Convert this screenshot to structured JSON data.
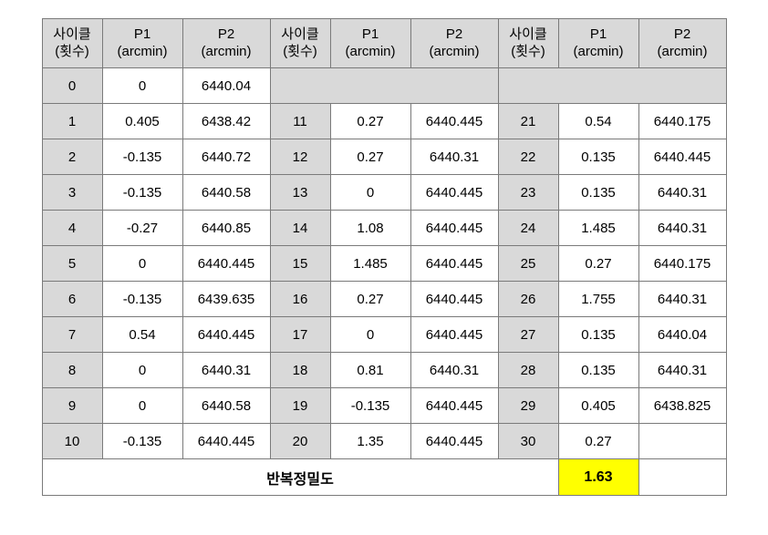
{
  "headers": {
    "cycle_line1": "사이클",
    "cycle_line2": "(횟수)",
    "p1_line1": "P1",
    "p1_line2": "(arcmin)",
    "p2_line1": "P2",
    "p2_line2": "(arcmin)"
  },
  "rows": [
    {
      "c1": "0",
      "p1a": "0",
      "p2a": "6440.04",
      "c2": "",
      "p1b": "",
      "p2b": "",
      "c3": "",
      "p1c": "",
      "p2c": ""
    },
    {
      "c1": "1",
      "p1a": "0.405",
      "p2a": "6438.42",
      "c2": "11",
      "p1b": "0.27",
      "p2b": "6440.445",
      "c3": "21",
      "p1c": "0.54",
      "p2c": "6440.175"
    },
    {
      "c1": "2",
      "p1a": "-0.135",
      "p2a": "6440.72",
      "c2": "12",
      "p1b": "0.27",
      "p2b": "6440.31",
      "c3": "22",
      "p1c": "0.135",
      "p2c": "6440.445"
    },
    {
      "c1": "3",
      "p1a": "-0.135",
      "p2a": "6440.58",
      "c2": "13",
      "p1b": "0",
      "p2b": "6440.445",
      "c3": "23",
      "p1c": "0.135",
      "p2c": "6440.31"
    },
    {
      "c1": "4",
      "p1a": "-0.27",
      "p2a": "6440.85",
      "c2": "14",
      "p1b": "1.08",
      "p2b": "6440.445",
      "c3": "24",
      "p1c": "1.485",
      "p2c": "6440.31"
    },
    {
      "c1": "5",
      "p1a": "0",
      "p2a": "6440.445",
      "c2": "15",
      "p1b": "1.485",
      "p2b": "6440.445",
      "c3": "25",
      "p1c": "0.27",
      "p2c": "6440.175"
    },
    {
      "c1": "6",
      "p1a": "-0.135",
      "p2a": "6439.635",
      "c2": "16",
      "p1b": "0.27",
      "p2b": "6440.445",
      "c3": "26",
      "p1c": "1.755",
      "p2c": "6440.31"
    },
    {
      "c1": "7",
      "p1a": "0.54",
      "p2a": "6440.445",
      "c2": "17",
      "p1b": "0",
      "p2b": "6440.445",
      "c3": "27",
      "p1c": "0.135",
      "p2c": "6440.04"
    },
    {
      "c1": "8",
      "p1a": "0",
      "p2a": "6440.31",
      "c2": "18",
      "p1b": "0.81",
      "p2b": "6440.31",
      "c3": "28",
      "p1c": "0.135",
      "p2c": "6440.31"
    },
    {
      "c1": "9",
      "p1a": "0",
      "p2a": "6440.58",
      "c2": "19",
      "p1b": "-0.135",
      "p2b": "6440.445",
      "c3": "29",
      "p1c": "0.405",
      "p2c": "6438.825"
    },
    {
      "c1": "10",
      "p1a": "-0.135",
      "p2a": "6440.445",
      "c2": "20",
      "p1b": "1.35",
      "p2b": "6440.445",
      "c3": "30",
      "p1c": "0.27",
      "p2c": ""
    }
  ],
  "summary": {
    "label": "반복정밀도",
    "value": "1.63"
  },
  "style": {
    "header_bg": "#d9d9d9",
    "cycle_bg": "#d9d9d9",
    "data_bg": "#ffffff",
    "highlight_bg": "#ffff00",
    "border_color": "#7a7a7a",
    "font_size_header": 15,
    "font_size_data": 15,
    "font_size_summary": 16,
    "col_width_cycle": 66,
    "col_width_p1": 88,
    "col_width_p2": 96,
    "row_height_header": 54,
    "row_height_data": 39,
    "row_height_summary": 40
  }
}
